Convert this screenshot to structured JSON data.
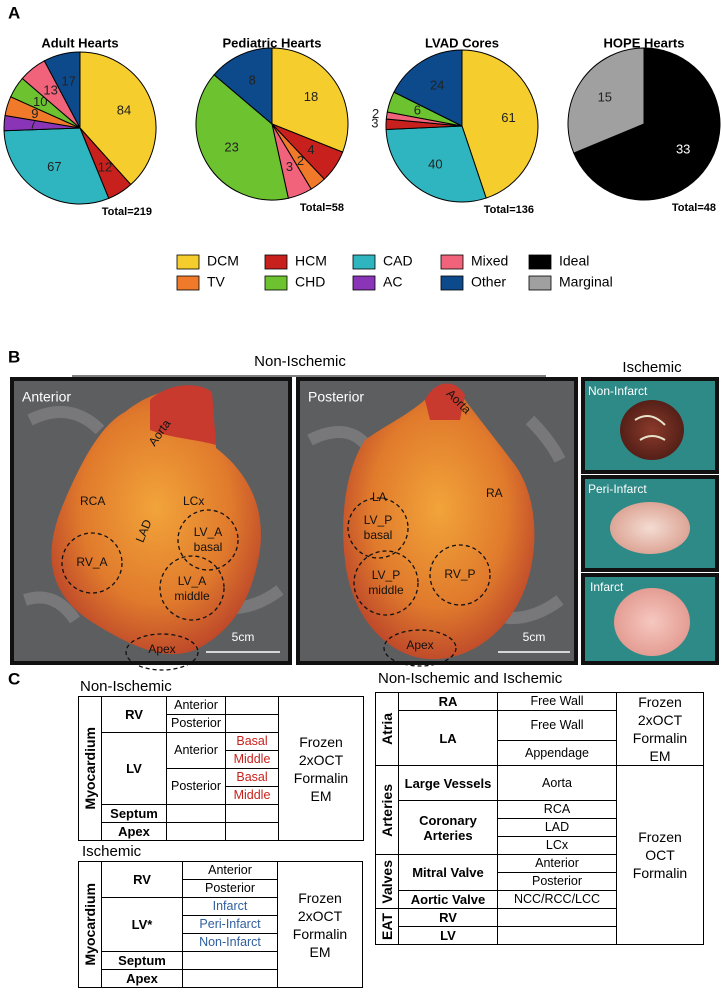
{
  "panel_a": {
    "label": "A",
    "legend": [
      {
        "name": "DCM",
        "color": "#f5cd2c"
      },
      {
        "name": "TV",
        "color": "#f07a2a"
      },
      {
        "name": "HCM",
        "color": "#c8211d"
      },
      {
        "name": "CHD",
        "color": "#6cc32f"
      },
      {
        "name": "CAD",
        "color": "#2fb5bf"
      },
      {
        "name": "AC",
        "color": "#8a34b8"
      },
      {
        "name": "Mixed",
        "color": "#f0637a"
      },
      {
        "name": "Other",
        "color": "#0d4a8c"
      },
      {
        "name": "Ideal",
        "color": "#000000"
      },
      {
        "name": "Marginal",
        "color": "#a0a0a0"
      }
    ]
  },
  "chart_data": [
    {
      "type": "pie",
      "title": "Adult Hearts",
      "total_label": "Total=219",
      "categories": [
        "DCM",
        "HCM",
        "CAD",
        "AC",
        "TV",
        "CHD",
        "Mixed",
        "Other"
      ],
      "values": [
        84,
        12,
        67,
        7,
        9,
        10,
        13,
        17
      ],
      "colors": [
        "#f5cd2c",
        "#c8211d",
        "#2fb5bf",
        "#8a34b8",
        "#f07a2a",
        "#6cc32f",
        "#f0637a",
        "#0d4a8c"
      ]
    },
    {
      "type": "pie",
      "title": "Pediatric Hearts",
      "total_label": "Total=58",
      "categories": [
        "DCM",
        "HCM",
        "TV",
        "Mixed",
        "CHD",
        "Other"
      ],
      "values": [
        18,
        4,
        2,
        3,
        23,
        8
      ],
      "colors": [
        "#f5cd2c",
        "#c8211d",
        "#f07a2a",
        "#f0637a",
        "#6cc32f",
        "#0d4a8c"
      ]
    },
    {
      "type": "pie",
      "title": "LVAD Cores",
      "total_label": "Total=136",
      "categories": [
        "DCM",
        "CAD",
        "HCM",
        "Mixed",
        "CHD",
        "Other"
      ],
      "values": [
        61,
        40,
        3,
        2,
        6,
        24
      ],
      "colors": [
        "#f5cd2c",
        "#2fb5bf",
        "#c8211d",
        "#f0637a",
        "#6cc32f",
        "#0d4a8c"
      ]
    },
    {
      "type": "pie",
      "title": "HOPE Hearts",
      "total_label": "Total=48",
      "categories": [
        "Ideal",
        "Marginal"
      ],
      "values": [
        33,
        15
      ],
      "colors": [
        "#000000",
        "#a0a0a0"
      ]
    }
  ],
  "panel_b": {
    "label": "B",
    "non_ischemic": "Non-Ischemic",
    "ischemic": "Ischemic",
    "anterior": {
      "title": "Anterior",
      "aorta": "Aorta",
      "rca": "RCA",
      "lcx": "LCx",
      "lad": "LAD",
      "rv": "RV_A",
      "lv_basal": [
        "LV_A",
        "basal"
      ],
      "lv_middle": [
        "LV_A",
        "middle"
      ],
      "apex": "Apex",
      "scale": "5cm"
    },
    "posterior": {
      "title": "Posterior",
      "aorta": "Aorta",
      "la": "LA",
      "ra": "RA",
      "rv": "RV_P",
      "lv_basal": [
        "LV_P",
        "basal"
      ],
      "lv_middle": [
        "LV_P",
        "middle"
      ],
      "apex": "Apex",
      "scale": "5cm"
    },
    "ischemic_panels": [
      "Non-Infarct",
      "Peri-Infarct",
      "Infarct"
    ]
  },
  "panel_c": {
    "label": "C",
    "non_ischemic": {
      "title": "Non-Ischemic",
      "group": "Myocardium",
      "rv": "RV",
      "rv_sites": [
        "Anterior",
        "Posterior"
      ],
      "lv": "LV",
      "lv_sites": [
        "Anterior",
        "Posterior"
      ],
      "levels": [
        "Basal",
        "Middle",
        "Basal",
        "Middle"
      ],
      "septum": "Septum",
      "apex": "Apex",
      "methods": [
        "Frozen",
        "2xOCT",
        "Formalin",
        "EM"
      ]
    },
    "ischemic": {
      "title": "Ischemic",
      "group": "Myocardium",
      "rv": "RV",
      "rv_sites": [
        "Anterior",
        "Posterior"
      ],
      "lv": "LV*",
      "lv_sites": [
        "Infarct",
        "Peri-Infarct",
        "Non-Infarct"
      ],
      "septum": "Septum",
      "apex": "Apex",
      "methods": [
        "Frozen",
        "2xOCT",
        "Formalin",
        "EM"
      ]
    },
    "both": {
      "title": "Non-Ischemic and Ischemic",
      "atria": "Atria",
      "ra": "RA",
      "ra_site": "Free Wall",
      "la": "LA",
      "la_sites": [
        "Free Wall",
        "Appendage"
      ],
      "atria_methods": [
        "Frozen",
        "2xOCT",
        "Formalin",
        "EM"
      ],
      "arteries": "Arteries",
      "large_vessels": "Large Vessels",
      "aorta": "Aorta",
      "coronary": "Coronary Arteries",
      "coronary_sites": [
        "RCA",
        "LAD",
        "LCx"
      ],
      "valves": "Valves",
      "mitral": "Mitral Valve",
      "mitral_sites": [
        "Anterior",
        "Posterior"
      ],
      "aortic": "Aortic Valve",
      "aortic_site": "NCC/RCC/LCC",
      "eat": "EAT",
      "eat_rows": [
        "RV",
        "LV"
      ],
      "methods": [
        "Frozen",
        "OCT",
        "Formalin"
      ]
    }
  }
}
